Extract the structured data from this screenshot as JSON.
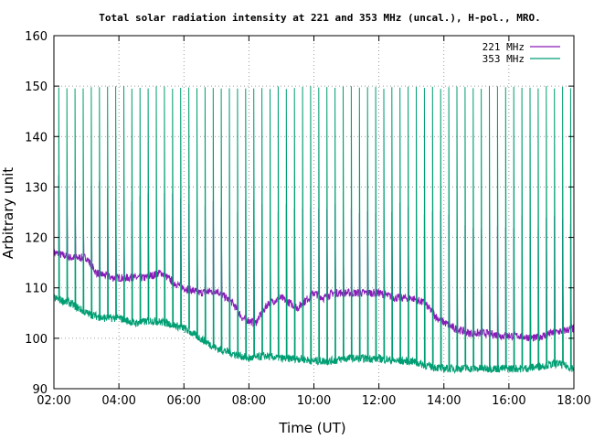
{
  "chart_data": {
    "type": "line",
    "title": "Total solar radiation intensity at 221 and 353 MHz (uncal.), H-pol., MRO.",
    "xlabel": "Time (UT)",
    "ylabel": "Arbitrary unit",
    "xlim": [
      2,
      18
    ],
    "ylim": [
      90,
      160
    ],
    "x_ticks": [
      {
        "value": 2,
        "label": "02:00"
      },
      {
        "value": 4,
        "label": "04:00"
      },
      {
        "value": 6,
        "label": "06:00"
      },
      {
        "value": 8,
        "label": "08:00"
      },
      {
        "value": 10,
        "label": "10:00"
      },
      {
        "value": 12,
        "label": "12:00"
      },
      {
        "value": 14,
        "label": "14:00"
      },
      {
        "value": 16,
        "label": "16:00"
      },
      {
        "value": 18,
        "label": "18:00"
      }
    ],
    "y_ticks": [
      90,
      100,
      110,
      120,
      130,
      140,
      150,
      160
    ],
    "grid": true,
    "legend": "top-right",
    "colors": {
      "s221": "#8b1ab8",
      "s353": "#009e73",
      "axis": "#000000",
      "grid": "#808080"
    },
    "series": [
      {
        "name": "221 MHz",
        "baseline": [
          [
            2.0,
            117
          ],
          [
            2.5,
            116
          ],
          [
            3.0,
            116
          ],
          [
            3.3,
            113
          ],
          [
            3.8,
            112
          ],
          [
            4.3,
            112
          ],
          [
            4.8,
            112
          ],
          [
            5.3,
            113
          ],
          [
            5.7,
            111
          ],
          [
            6.0,
            110
          ],
          [
            6.5,
            109
          ],
          [
            7.0,
            109.5
          ],
          [
            7.5,
            107
          ],
          [
            7.8,
            104
          ],
          [
            8.2,
            103
          ],
          [
            8.6,
            107
          ],
          [
            9.0,
            108
          ],
          [
            9.5,
            106
          ],
          [
            10.0,
            109
          ],
          [
            10.3,
            108
          ],
          [
            10.6,
            109
          ],
          [
            11.0,
            109
          ],
          [
            11.5,
            109
          ],
          [
            12.0,
            109
          ],
          [
            12.5,
            108
          ],
          [
            13.0,
            108
          ],
          [
            13.4,
            107
          ],
          [
            13.8,
            104
          ],
          [
            14.3,
            102
          ],
          [
            14.8,
            101
          ],
          [
            15.3,
            101
          ],
          [
            15.8,
            100.5
          ],
          [
            16.3,
            100.5
          ],
          [
            16.8,
            100
          ],
          [
            17.3,
            101
          ],
          [
            17.7,
            101.5
          ],
          [
            18.0,
            102
          ]
        ],
        "spike_levels": [
          [
            2.0,
            132
          ],
          [
            3.0,
            130
          ],
          [
            4.0,
            129
          ],
          [
            5.0,
            128
          ],
          [
            6.0,
            127
          ],
          [
            7.0,
            126
          ],
          [
            8.0,
            126
          ],
          [
            9.0,
            126
          ],
          [
            10.0,
            126
          ],
          [
            11.0,
            126
          ],
          [
            12.0,
            126
          ],
          [
            13.0,
            125
          ],
          [
            14.0,
            124
          ],
          [
            15.0,
            123
          ],
          [
            16.0,
            123
          ],
          [
            17.0,
            123
          ],
          [
            18.0,
            123
          ]
        ]
      },
      {
        "name": "353 MHz",
        "baseline": [
          [
            2.0,
            108
          ],
          [
            2.5,
            107
          ],
          [
            3.0,
            105
          ],
          [
            3.5,
            104
          ],
          [
            4.0,
            104
          ],
          [
            4.5,
            103
          ],
          [
            5.0,
            103.5
          ],
          [
            5.5,
            103
          ],
          [
            6.0,
            102
          ],
          [
            6.5,
            100
          ],
          [
            7.0,
            98
          ],
          [
            7.5,
            97
          ],
          [
            8.0,
            96
          ],
          [
            8.5,
            96.5
          ],
          [
            9.0,
            96
          ],
          [
            9.5,
            96
          ],
          [
            10.0,
            95.5
          ],
          [
            10.5,
            95.5
          ],
          [
            11.0,
            96
          ],
          [
            11.5,
            96
          ],
          [
            12.0,
            96
          ],
          [
            12.5,
            95.5
          ],
          [
            13.0,
            95.5
          ],
          [
            13.5,
            94.5
          ],
          [
            14.0,
            94
          ],
          [
            14.5,
            94
          ],
          [
            15.0,
            94
          ],
          [
            15.5,
            94
          ],
          [
            16.0,
            94
          ],
          [
            16.5,
            94
          ],
          [
            17.0,
            94.5
          ],
          [
            17.5,
            95
          ],
          [
            18.0,
            94
          ]
        ],
        "spike_peak": 150,
        "spike_start": 2.15,
        "spike_interval": 0.25,
        "spike_end": 18.0
      }
    ]
  }
}
